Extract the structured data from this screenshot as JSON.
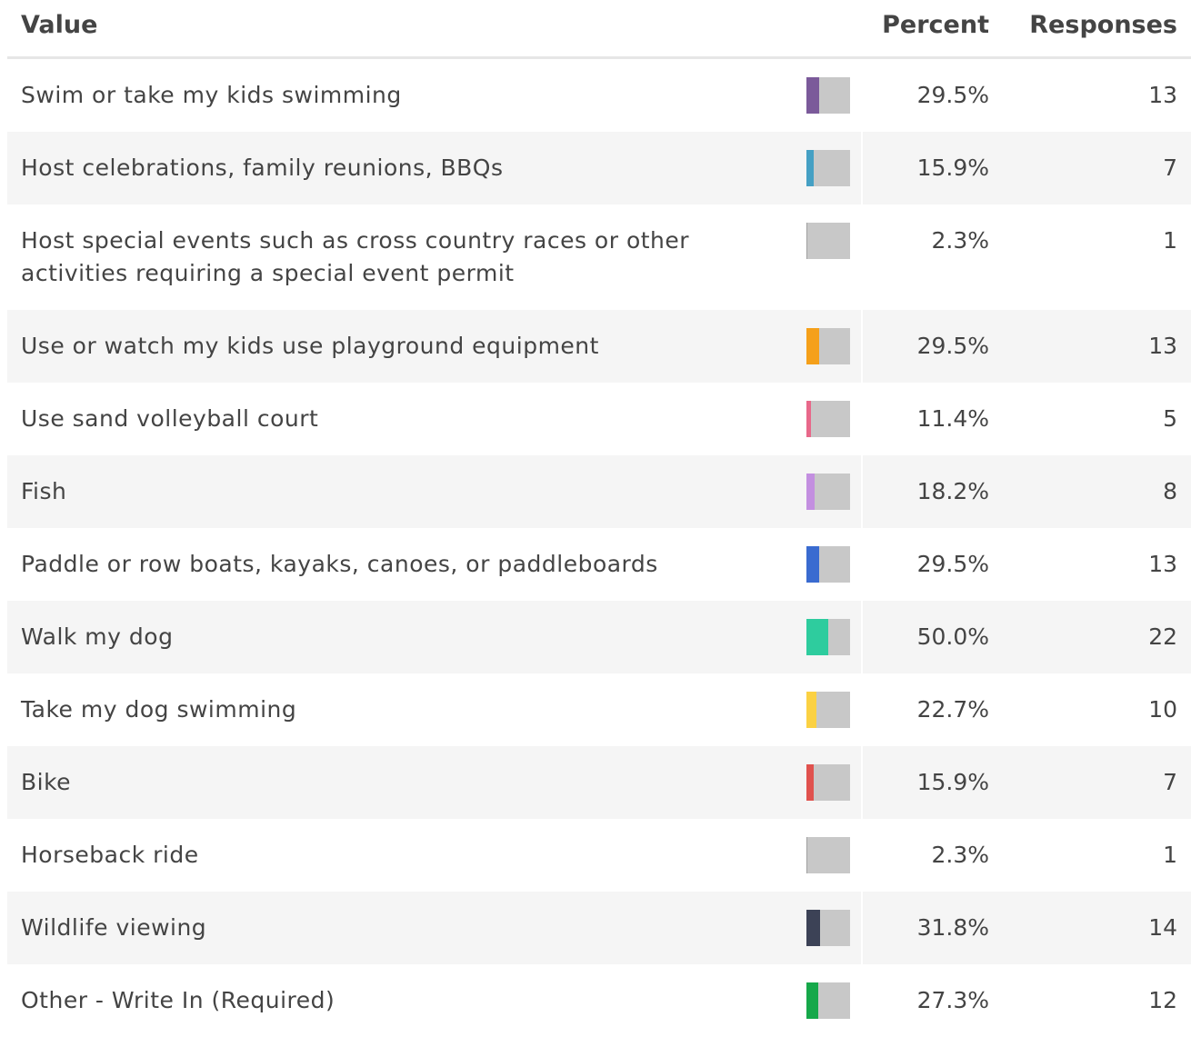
{
  "header": {
    "value": "Value",
    "percent": "Percent",
    "responses": "Responses"
  },
  "table": {
    "rows": [
      {
        "value": "Swim or take my kids swimming",
        "percent": 29.5,
        "percent_label": "29.5%",
        "responses": 13,
        "color": "#7b5a9a"
      },
      {
        "value": "Host celebrations, family reunions, BBQs",
        "percent": 15.9,
        "percent_label": "15.9%",
        "responses": 7,
        "color": "#45a0c4"
      },
      {
        "value": "Host special events such as cross country races or other activities requiring a special event permit",
        "percent": 2.3,
        "percent_label": "2.3%",
        "responses": 1,
        "color": "#a0a0a0"
      },
      {
        "value": "Use or watch my kids use playground equipment",
        "percent": 29.5,
        "percent_label": "29.5%",
        "responses": 13,
        "color": "#f5a01a"
      },
      {
        "value": "Use sand volleyball court",
        "percent": 11.4,
        "percent_label": "11.4%",
        "responses": 5,
        "color": "#e8688a"
      },
      {
        "value": "Fish",
        "percent": 18.2,
        "percent_label": "18.2%",
        "responses": 8,
        "color": "#c38fe0"
      },
      {
        "value": "Paddle or row boats, kayaks, canoes, or paddleboards",
        "percent": 29.5,
        "percent_label": "29.5%",
        "responses": 13,
        "color": "#3a6bd0"
      },
      {
        "value": "Walk my dog",
        "percent": 50.0,
        "percent_label": "50.0%",
        "responses": 22,
        "color": "#2ecc9e"
      },
      {
        "value": "Take my dog swimming",
        "percent": 22.7,
        "percent_label": "22.7%",
        "responses": 10,
        "color": "#fbd143"
      },
      {
        "value": "Bike",
        "percent": 15.9,
        "percent_label": "15.9%",
        "responses": 7,
        "color": "#e0524e"
      },
      {
        "value": "Horseback ride",
        "percent": 2.3,
        "percent_label": "2.3%",
        "responses": 1,
        "color": "#a0a0a0"
      },
      {
        "value": "Wildlife viewing",
        "percent": 31.8,
        "percent_label": "31.8%",
        "responses": 14,
        "color": "#3c4256"
      },
      {
        "value": "Other - Write In (Required)",
        "percent": 27.3,
        "percent_label": "27.3%",
        "responses": 12,
        "color": "#16a84a"
      }
    ]
  }
}
